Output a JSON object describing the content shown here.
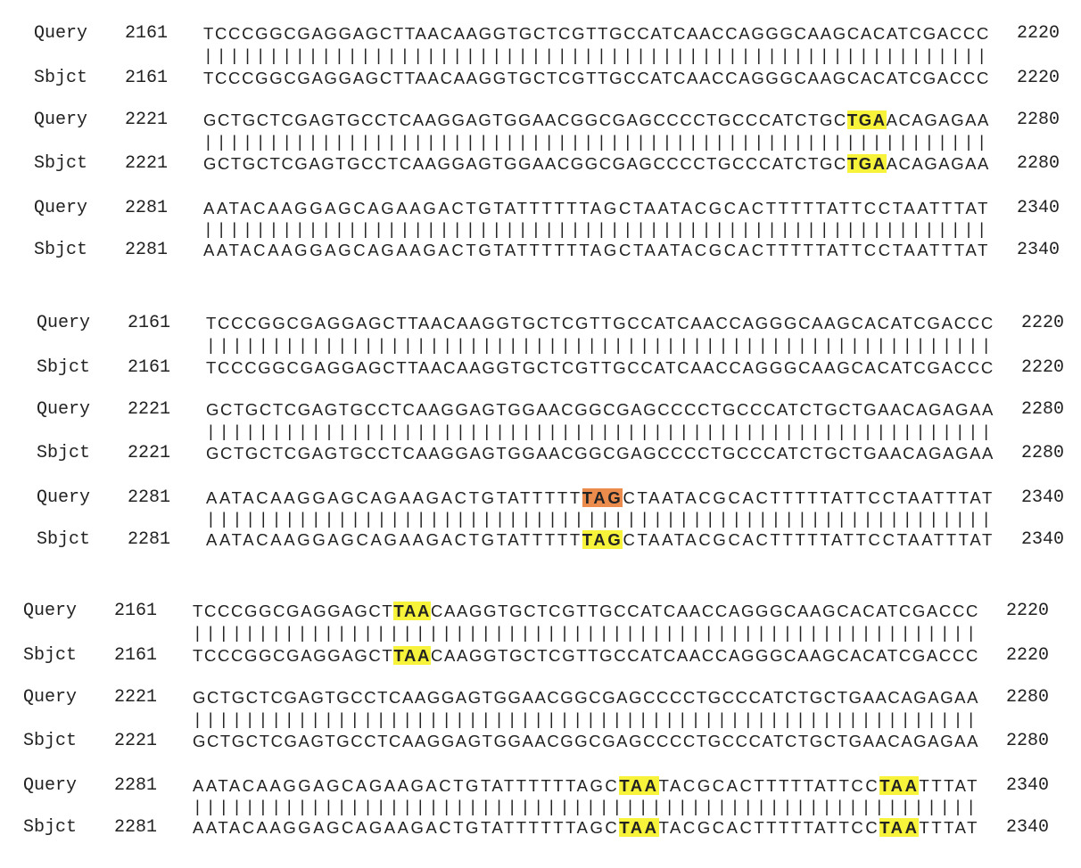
{
  "blocks": [
    {
      "rows": [
        {
          "label": "Query",
          "start": "2161",
          "end": "2220",
          "segments": [
            {
              "text": "TCCCGGCGAGGAGCTTAACAAGGTGCTCGTTGCCATCAACCAGGGCAAGCACATCGACCC",
              "hl": ""
            }
          ]
        },
        {
          "label": "Sbjct",
          "start": "2161",
          "end": "2220",
          "segments": [
            {
              "text": "TCCCGGCGAGGAGCTTAACAAGGTGCTCGTTGCCATCAACCAGGGCAAGCACATCGACCC",
              "hl": ""
            }
          ]
        },
        {
          "label": "Query",
          "start": "2221",
          "end": "2280",
          "segments": [
            {
              "text": "GCTGCTCGAGTGCCTCAAGGAGTGGAACGGCGAGCCCCTGCCCATCTGC",
              "hl": ""
            },
            {
              "text": "TGA",
              "hl": "yellow"
            },
            {
              "text": "ACAGAGAA",
              "hl": ""
            }
          ]
        },
        {
          "label": "Sbjct",
          "start": "2221",
          "end": "2280",
          "segments": [
            {
              "text": "GCTGCTCGAGTGCCTCAAGGAGTGGAACGGCGAGCCCCTGCCCATCTGC",
              "hl": ""
            },
            {
              "text": "TGA",
              "hl": "yellow"
            },
            {
              "text": "ACAGAGAA",
              "hl": ""
            }
          ]
        },
        {
          "label": "Query",
          "start": "2281",
          "end": "2340",
          "segments": [
            {
              "text": "AATACAAGGAGCAGAAGACTGTATTTTTTAGCTAATACGCACTTTTTATTCCTAATTTAT",
              "hl": ""
            }
          ]
        },
        {
          "label": "Sbjct",
          "start": "2281",
          "end": "2340",
          "segments": [
            {
              "text": "AATACAAGGAGCAGAAGACTGTATTTTTTAGCTAATACGCACTTTTTATTCCTAATTTAT",
              "hl": ""
            }
          ]
        }
      ]
    },
    {
      "rows": [
        {
          "label": "Query",
          "start": "2161",
          "end": "2220",
          "segments": [
            {
              "text": "TCCCGGCGAGGAGCTTAACAAGGTGCTCGTTGCCATCAACCAGGGCAAGCACATCGACCC",
              "hl": ""
            }
          ]
        },
        {
          "label": "Sbjct",
          "start": "2161",
          "end": "2220",
          "segments": [
            {
              "text": "TCCCGGCGAGGAGCTTAACAAGGTGCTCGTTGCCATCAACCAGGGCAAGCACATCGACCC",
              "hl": ""
            }
          ]
        },
        {
          "label": "Query",
          "start": "2221",
          "end": "2280",
          "segments": [
            {
              "text": "GCTGCTCGAGTGCCTCAAGGAGTGGAACGGCGAGCCCCTGCCCATCTGCTGAACAGAGAA",
              "hl": ""
            }
          ]
        },
        {
          "label": "Sbjct",
          "start": "2221",
          "end": "2280",
          "segments": [
            {
              "text": "GCTGCTCGAGTGCCTCAAGGAGTGGAACGGCGAGCCCCTGCCCATCTGCTGAACAGAGAA",
              "hl": ""
            }
          ]
        },
        {
          "label": "Query",
          "start": "2281",
          "end": "2340",
          "segments": [
            {
              "text": "AATACAAGGAGCAGAAGACTGTATTTTT",
              "hl": ""
            },
            {
              "text": "TAG",
              "hl": "orange"
            },
            {
              "text": "CTAATACGCACTTTTTATTCCTAATTTAT",
              "hl": ""
            }
          ]
        },
        {
          "label": "Sbjct",
          "start": "2281",
          "end": "2340",
          "segments": [
            {
              "text": "AATACAAGGAGCAGAAGACTGTATTTTT",
              "hl": ""
            },
            {
              "text": "TAG",
              "hl": "yellow"
            },
            {
              "text": "CTAATACGCACTTTTTATTCCTAATTTAT",
              "hl": ""
            }
          ]
        }
      ]
    },
    {
      "rows": [
        {
          "label": "Query",
          "start": "2161",
          "end": "2220",
          "segments": [
            {
              "text": "TCCCGGCGAGGAGCT",
              "hl": ""
            },
            {
              "text": "TAA",
              "hl": "yellow"
            },
            {
              "text": "CAAGGTGCTCGTTGCCATCAACCAGGGCAAGCACATCGACCC",
              "hl": ""
            }
          ]
        },
        {
          "label": "Sbjct",
          "start": "2161",
          "end": "2220",
          "segments": [
            {
              "text": "TCCCGGCGAGGAGCT",
              "hl": ""
            },
            {
              "text": "TAA",
              "hl": "yellow"
            },
            {
              "text": "CAAGGTGCTCGTTGCCATCAACCAGGGCAAGCACATCGACCC",
              "hl": ""
            }
          ]
        },
        {
          "label": "Query",
          "start": "2221",
          "end": "2280",
          "segments": [
            {
              "text": "GCTGCTCGAGTGCCTCAAGGAGTGGAACGGCGAGCCCCTGCCCATCTGCTGAACAGAGAA",
              "hl": ""
            }
          ]
        },
        {
          "label": "Sbjct",
          "start": "2221",
          "end": "2280",
          "segments": [
            {
              "text": "GCTGCTCGAGTGCCTCAAGGAGTGGAACGGCGAGCCCCTGCCCATCTGCTGAACAGAGAA",
              "hl": ""
            }
          ]
        },
        {
          "label": "Query",
          "start": "2281",
          "end": "2340",
          "segments": [
            {
              "text": "AATACAAGGAGCAGAAGACTGTATTTTTTAGC",
              "hl": ""
            },
            {
              "text": "TAA",
              "hl": "yellow"
            },
            {
              "text": "TACGCACTTTTTATTCC",
              "hl": ""
            },
            {
              "text": "TAA",
              "hl": "yellow"
            },
            {
              "text": "TTTAT",
              "hl": ""
            }
          ]
        },
        {
          "label": "Sbjct",
          "start": "2281",
          "end": "2340",
          "segments": [
            {
              "text": "AATACAAGGAGCAGAAGACTGTATTTTTTAGC",
              "hl": ""
            },
            {
              "text": "TAA",
              "hl": "yellow"
            },
            {
              "text": "TACGCACTTTTTATTCC",
              "hl": ""
            },
            {
              "text": "TAA",
              "hl": "yellow"
            },
            {
              "text": "TTTAT",
              "hl": ""
            }
          ]
        }
      ]
    }
  ],
  "colors": {
    "highlight": "#f7f23a",
    "highlight_alt": "#ec8c4c"
  }
}
